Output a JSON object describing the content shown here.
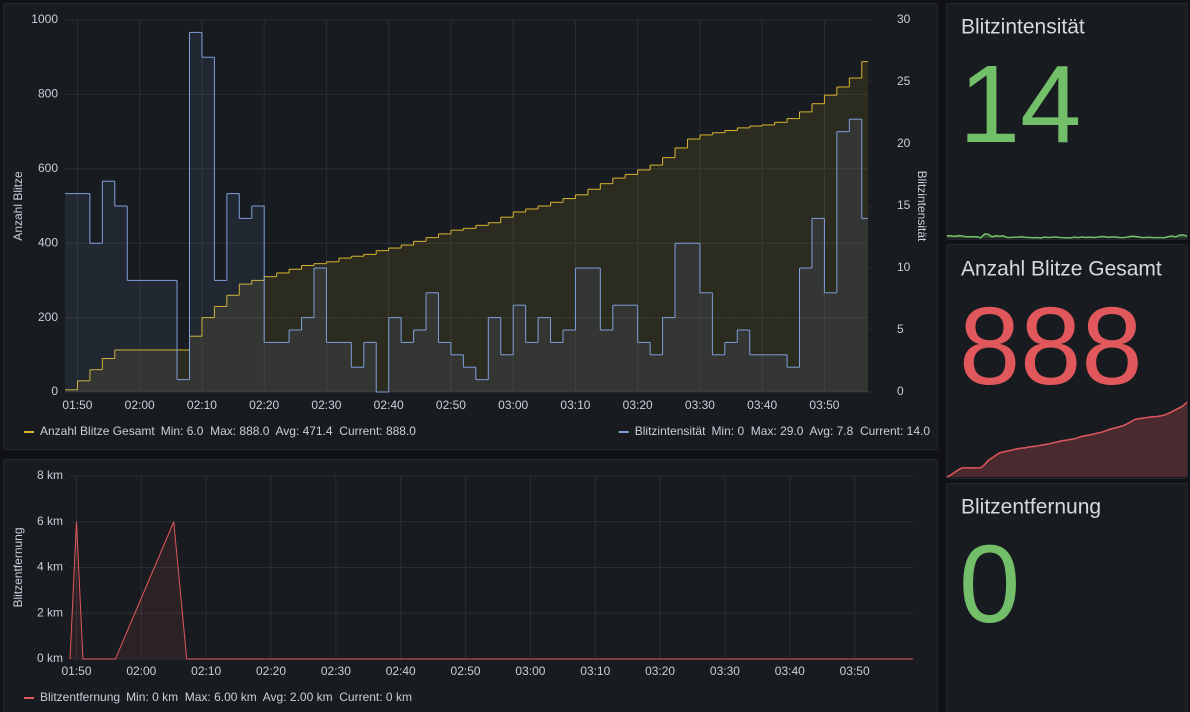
{
  "chart_data": [
    {
      "type": "step-line",
      "x": [
        "01:48",
        "01:50",
        "01:52",
        "01:54",
        "01:56",
        "01:58",
        "02:00",
        "02:02",
        "02:04",
        "02:06",
        "02:08",
        "02:10",
        "02:12",
        "02:14",
        "02:16",
        "02:18",
        "02:20",
        "02:22",
        "02:24",
        "02:26",
        "02:28",
        "02:30",
        "02:32",
        "02:34",
        "02:36",
        "02:38",
        "02:40",
        "02:42",
        "02:44",
        "02:46",
        "02:48",
        "02:50",
        "02:52",
        "02:54",
        "02:56",
        "02:58",
        "03:00",
        "03:02",
        "03:04",
        "03:06",
        "03:08",
        "03:10",
        "03:12",
        "03:14",
        "03:16",
        "03:18",
        "03:20",
        "03:22",
        "03:24",
        "03:26",
        "03:28",
        "03:30",
        "03:32",
        "03:34",
        "03:36",
        "03:38",
        "03:40",
        "03:42",
        "03:44",
        "03:46",
        "03:48",
        "03:50",
        "03:52",
        "03:54",
        "03:56"
      ],
      "xlim": [
        "01:48",
        "03:57"
      ],
      "xticks": [
        "01:50",
        "02:00",
        "02:10",
        "02:20",
        "02:30",
        "02:40",
        "02:50",
        "03:00",
        "03:10",
        "03:20",
        "03:30",
        "03:40",
        "03:50"
      ],
      "ylim": [
        0,
        1000
      ],
      "yticks": [
        0,
        200,
        400,
        600,
        800,
        1000
      ],
      "y2lim": [
        0,
        30
      ],
      "y2ticks": [
        0,
        5,
        10,
        15,
        20,
        25,
        30
      ],
      "ylabel": "Anzahl Blitze",
      "y2label": "Blitzintensität",
      "grid": true,
      "series": [
        {
          "name": "Anzahl Blitze Gesamt",
          "color": "#d8b62f",
          "values": [
            6,
            30,
            60,
            90,
            113,
            113,
            113,
            113,
            113,
            113,
            150,
            200,
            230,
            260,
            290,
            300,
            310,
            320,
            330,
            340,
            345,
            350,
            360,
            365,
            370,
            380,
            387,
            395,
            405,
            415,
            425,
            435,
            440,
            448,
            455,
            470,
            484,
            492,
            500,
            510,
            520,
            530,
            545,
            560,
            575,
            585,
            597,
            610,
            630,
            656,
            680,
            691,
            697,
            703,
            710,
            715,
            718,
            725,
            735,
            753,
            775,
            798,
            820,
            844,
            888
          ],
          "legend_stats": "Min: 6.0  Max: 888.0  Avg: 471.4  Current: 888.0"
        },
        {
          "name": "Blitzintensität",
          "color": "#7e9fdc",
          "axis": "y2",
          "values": [
            16,
            16,
            12,
            17,
            15,
            9,
            9,
            9,
            9,
            1,
            29,
            27,
            9,
            16,
            14,
            15,
            4,
            4,
            5,
            6,
            10,
            4,
            4,
            2,
            4,
            0,
            6,
            4,
            5,
            8,
            4,
            3,
            2,
            1,
            6,
            3,
            7,
            4,
            6,
            4,
            5,
            10,
            10,
            5,
            7,
            7,
            4,
            3,
            6,
            12,
            12,
            8,
            3,
            4,
            5,
            3,
            3,
            3,
            2,
            10,
            14,
            8,
            21,
            22,
            14
          ],
          "legend_stats": "Min: 0  Max: 29.0  Avg: 7.8  Current: 14.0"
        }
      ]
    },
    {
      "type": "line",
      "x": [
        "01:49",
        "01:50",
        "01:51",
        "01:56",
        "02:05",
        "02:07",
        "03:59"
      ],
      "xlim": [
        "01:49",
        "03:59"
      ],
      "xticks": [
        "01:50",
        "02:00",
        "02:10",
        "02:20",
        "02:30",
        "02:40",
        "02:50",
        "03:00",
        "03:10",
        "03:20",
        "03:30",
        "03:40",
        "03:50"
      ],
      "ylim": [
        0,
        8
      ],
      "yticks": [
        {
          "value": 0,
          "label": "0 km"
        },
        {
          "value": 2,
          "label": "2 km"
        },
        {
          "value": 4,
          "label": "4 km"
        },
        {
          "value": 6,
          "label": "6 km"
        },
        {
          "value": 8,
          "label": "8 km"
        }
      ],
      "ylabel": "Blitzentfernung",
      "grid": true,
      "series": [
        {
          "name": "Blitzentfernung",
          "color": "#e0585c",
          "values": [
            0,
            6,
            0,
            0,
            6,
            0,
            0
          ],
          "legend_stats": "Min: 0 km  Max: 6.00 km  Avg: 2.00 km  Current: 0 km"
        }
      ]
    },
    {
      "type": "stat",
      "title": "Blitzintensität",
      "value": 14,
      "color": "#73bf69",
      "sparkline": true
    },
    {
      "type": "stat",
      "title": "Anzahl Blitze Gesamt",
      "value": 888,
      "color": "#e0585c",
      "sparkline": true
    },
    {
      "type": "stat",
      "title": "Blitzentfernung",
      "value": 0,
      "color": "#73bf69",
      "sparkline": false
    }
  ]
}
